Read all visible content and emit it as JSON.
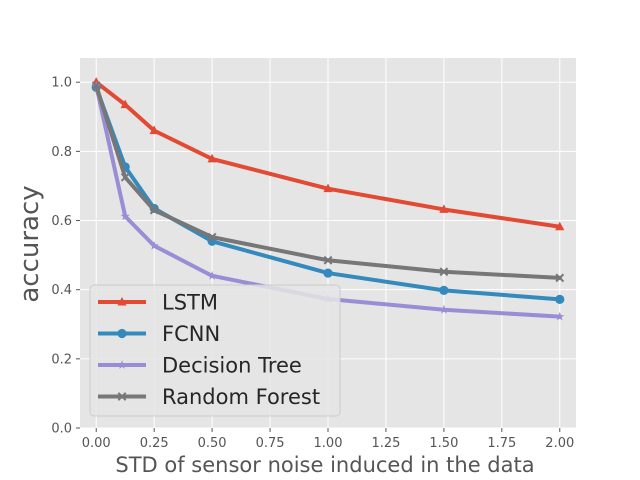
{
  "chart_data": {
    "type": "line",
    "title": "",
    "xlabel": "STD of sensor noise induced in the data",
    "ylabel": "accuracy",
    "xlim": [
      -0.07,
      2.07
    ],
    "ylim": [
      0.0,
      1.07
    ],
    "xticks": [
      0.0,
      0.25,
      0.5,
      0.75,
      1.0,
      1.25,
      1.5,
      1.75,
      2.0
    ],
    "xtick_labels": [
      "0.00",
      "0.25",
      "0.50",
      "0.75",
      "1.00",
      "1.25",
      "1.50",
      "1.75",
      "2.00"
    ],
    "yticks": [
      0.0,
      0.2,
      0.4,
      0.6,
      0.8,
      1.0
    ],
    "ytick_labels": [
      "0.0",
      "0.2",
      "0.4",
      "0.6",
      "0.8",
      "1.0"
    ],
    "grid": true,
    "legend_position": "lower-left",
    "x": [
      0.0,
      0.125,
      0.25,
      0.5,
      1.0,
      1.5,
      2.0
    ],
    "series": [
      {
        "name": "LSTM",
        "color": "#E24A33",
        "marker": "triangle",
        "values": [
          1.0,
          0.935,
          0.86,
          0.778,
          0.692,
          0.632,
          0.582
        ]
      },
      {
        "name": "FCNN",
        "color": "#348ABD",
        "marker": "circle",
        "values": [
          0.985,
          0.755,
          0.635,
          0.54,
          0.448,
          0.398,
          0.372
        ]
      },
      {
        "name": "Decision Tree",
        "color": "#988ED5",
        "marker": "star",
        "values": [
          0.99,
          0.612,
          0.527,
          0.44,
          0.373,
          0.342,
          0.322
        ]
      },
      {
        "name": "Random Forest",
        "color": "#777777",
        "marker": "x",
        "values": [
          0.99,
          0.725,
          0.63,
          0.552,
          0.485,
          0.452,
          0.434
        ]
      }
    ]
  }
}
